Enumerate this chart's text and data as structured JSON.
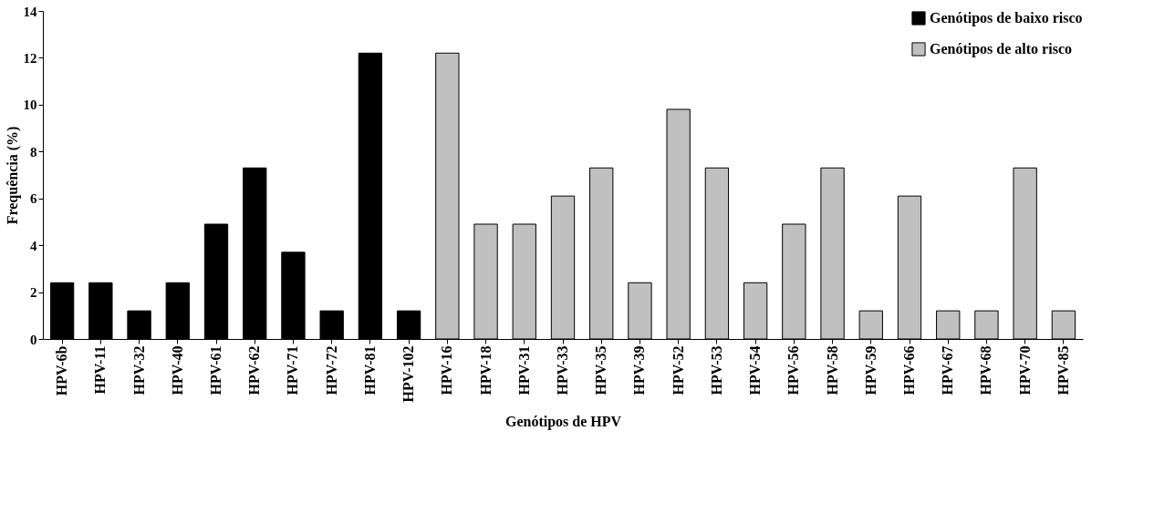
{
  "chart_data": {
    "type": "bar",
    "xlabel": "Genótipos de HPV",
    "ylabel": "Frequência (%)",
    "categories": [
      "HPV-6b",
      "HPV-11",
      "HPV-32",
      "HPV-40",
      "HPV-61",
      "HPV-62",
      "HPV-71",
      "HPV-72",
      "HPV-81",
      "HPV-102",
      "HPV-16",
      "HPV-18",
      "HPV-31",
      "HPV-33",
      "HPV-35",
      "HPV-39",
      "HPV-52",
      "HPV-53",
      "HPV-54",
      "HPV-56",
      "HPV-58",
      "HPV-59",
      "HPV-66",
      "HPV-67",
      "HPV-68",
      "HPV-70",
      "HPV-85"
    ],
    "series": [
      {
        "name": "Genótipos de baixo risco",
        "color": "#000000",
        "values": [
          2.4,
          2.4,
          1.2,
          2.4,
          4.9,
          7.3,
          3.7,
          1.2,
          12.2,
          1.2,
          null,
          null,
          null,
          null,
          null,
          null,
          null,
          null,
          null,
          null,
          null,
          null,
          null,
          null,
          null,
          null,
          null
        ]
      },
      {
        "name": "Genótipos de alto risco",
        "color": "#c0c0c0",
        "values": [
          null,
          null,
          null,
          null,
          null,
          null,
          null,
          null,
          null,
          null,
          12.2,
          4.9,
          4.9,
          6.1,
          7.3,
          2.4,
          9.8,
          7.3,
          2.4,
          4.9,
          7.3,
          1.2,
          6.1,
          1.2,
          1.2,
          7.3,
          1.2
        ]
      }
    ],
    "ylim": [
      0,
      14
    ],
    "yticks": [
      0,
      2,
      4,
      6,
      8,
      10,
      12,
      14
    ],
    "grid": false,
    "legend": "top right"
  }
}
